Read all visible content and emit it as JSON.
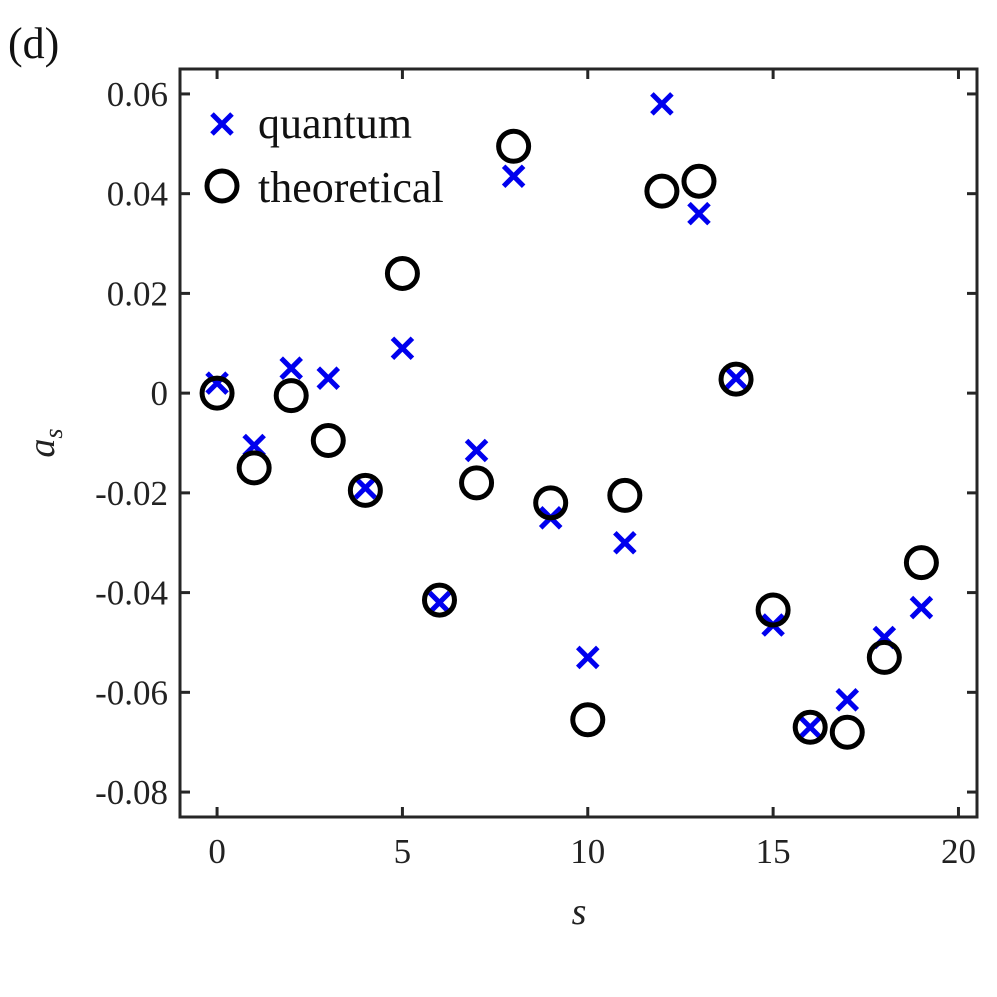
{
  "panel_label": "(d)",
  "chart_data": {
    "type": "scatter",
    "xlabel": "s",
    "ylabel": "a",
    "ylabel_subscript": "s",
    "xlim": [
      -1,
      20.5
    ],
    "ylim": [
      -0.085,
      0.065
    ],
    "x_ticks": [
      0,
      5,
      10,
      15,
      20
    ],
    "y_ticks": [
      0.06,
      0.04,
      0.02,
      0,
      -0.02,
      -0.04,
      -0.06,
      -0.08
    ],
    "x_tick_labels": [
      "0",
      "5",
      "10",
      "15",
      "20"
    ],
    "y_tick_labels": [
      "0.06",
      "0.04",
      "0.02",
      "0",
      "-0.02",
      "-0.04",
      "-0.06",
      "-0.08"
    ],
    "grid": false,
    "legend_placement": "top-left",
    "series": [
      {
        "name": "quantum",
        "marker": "x",
        "color": "#0000ee",
        "x": [
          0,
          1,
          2,
          3,
          4,
          5,
          6,
          7,
          8,
          9,
          10,
          11,
          12,
          13,
          14,
          15,
          16,
          17,
          18,
          19
        ],
        "y": [
          0.002,
          -0.0105,
          0.005,
          0.003,
          -0.019,
          0.009,
          -0.042,
          -0.0115,
          0.0435,
          -0.025,
          -0.053,
          -0.03,
          0.058,
          0.036,
          0.003,
          -0.0465,
          -0.067,
          -0.0615,
          -0.049,
          -0.043
        ]
      },
      {
        "name": "theoretical",
        "marker": "o",
        "color": "#000000",
        "x": [
          0,
          1,
          2,
          3,
          4,
          5,
          6,
          7,
          8,
          9,
          10,
          11,
          12,
          13,
          14,
          15,
          16,
          17,
          18,
          19
        ],
        "y": [
          0.0,
          -0.015,
          -0.0005,
          -0.0095,
          -0.0195,
          0.024,
          -0.0415,
          -0.018,
          0.0495,
          -0.022,
          -0.0655,
          -0.0205,
          0.0405,
          0.0425,
          0.0028,
          -0.0435,
          -0.067,
          -0.068,
          -0.053,
          -0.034
        ]
      }
    ]
  }
}
